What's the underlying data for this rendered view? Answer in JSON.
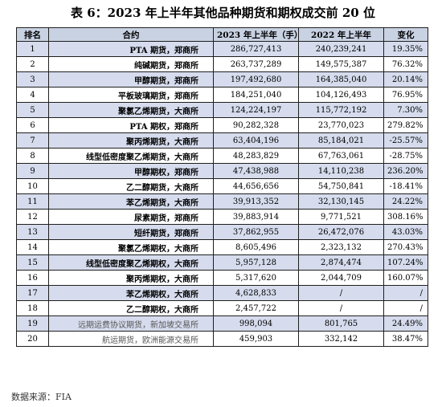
{
  "title": "表 6：2023 年上半年其他品种期货和期权成交前 20 位",
  "headers": [
    "排名",
    "合约",
    "2023 年上半年（手）",
    "2022 年上半年",
    "变化"
  ],
  "rows": [
    {
      "rank": "1",
      "name": "PTA 期货，郑商所",
      "v2023": "286,727,413",
      "v2022": "240,239,241",
      "change": "19.35%"
    },
    {
      "rank": "2",
      "name": "纯碱期货，郑商所",
      "v2023": "263,737,289",
      "v2022": "149,575,387",
      "change": "76.32%"
    },
    {
      "rank": "3",
      "name": "甲醇期货，郑商所",
      "v2023": "197,492,680",
      "v2022": "164,385,040",
      "change": "20.14%"
    },
    {
      "rank": "4",
      "name": "平板玻璃期货，郑商所",
      "v2023": "184,251,040",
      "v2022": "104,126,493",
      "change": "76.95%"
    },
    {
      "rank": "5",
      "name": "聚氯乙烯期货，大商所",
      "v2023": "124,224,197",
      "v2022": "115,772,192",
      "change": "7.30%"
    },
    {
      "rank": "6",
      "name": "PTA 期权，郑商所",
      "v2023": "90,282,328",
      "v2022": "23,770,023",
      "change": "279.82%"
    },
    {
      "rank": "7",
      "name": "聚丙烯期货，大商所",
      "v2023": "63,404,196",
      "v2022": "85,184,021",
      "change": "-25.57%"
    },
    {
      "rank": "8",
      "name": "线型低密度聚乙烯期货，大商所",
      "v2023": "48,283,829",
      "v2022": "67,763,061",
      "change": "-28.75%"
    },
    {
      "rank": "9",
      "name": "甲醇期权，郑商所",
      "v2023": "47,438,988",
      "v2022": "14,110,238",
      "change": "236.20%"
    },
    {
      "rank": "10",
      "name": "乙二醇期货，大商所",
      "v2023": "44,656,656",
      "v2022": "54,750,841",
      "change": "-18.41%"
    },
    {
      "rank": "11",
      "name": "苯乙烯期货，大商所",
      "v2023": "39,913,352",
      "v2022": "32,130,145",
      "change": "24.22%"
    },
    {
      "rank": "12",
      "name": "尿素期货，郑商所",
      "v2023": "39,883,914",
      "v2022": "9,771,521",
      "change": "308.16%"
    },
    {
      "rank": "13",
      "name": "短纤期货，郑商所",
      "v2023": "37,862,955",
      "v2022": "26,472,076",
      "change": "43.03%"
    },
    {
      "rank": "14",
      "name": "聚氯乙烯期权，大商所",
      "v2023": "8,605,496",
      "v2022": "2,323,132",
      "change": "270.43%"
    },
    {
      "rank": "15",
      "name": "线型低密度聚乙烯期权，大商所",
      "v2023": "5,957,128",
      "v2022": "2,874,474",
      "change": "107.24%"
    },
    {
      "rank": "16",
      "name": "聚丙烯期权，大商所",
      "v2023": "5,317,620",
      "v2022": "2,044,709",
      "change": "160.07%"
    },
    {
      "rank": "17",
      "name": "苯乙烯期权，大商所",
      "v2023": "4,628,833",
      "v2022": "/",
      "change": "/"
    },
    {
      "rank": "18",
      "name": "乙二醇期权，大商所",
      "v2023": "2,457,722",
      "v2022": "/",
      "change": "/"
    },
    {
      "rank": "19",
      "name": "远期运费协议期货，新加坡交易所",
      "v2023": "998,094",
      "v2022": "801,765",
      "change": "24.49%"
    },
    {
      "rank": "20",
      "name": "航运期货，欧洲能源交易所",
      "v2023": "459,903",
      "v2022": "332,142",
      "change": "38.47%"
    }
  ],
  "footer": "数据来源：FIA"
}
